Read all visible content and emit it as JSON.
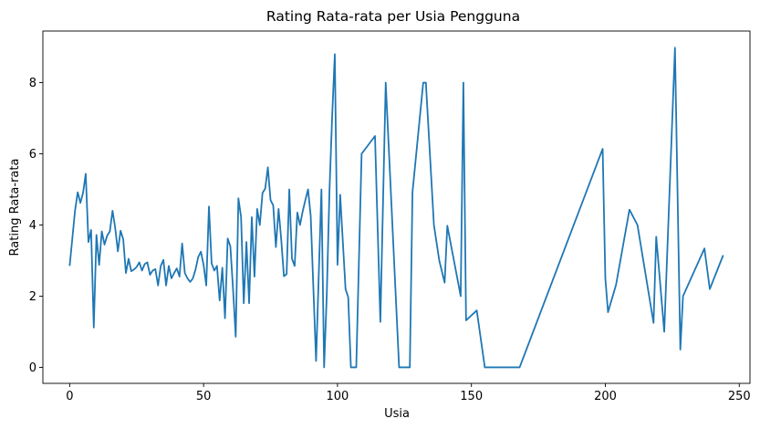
{
  "chart_data": {
    "type": "line",
    "title": "Rating Rata-rata per Usia Pengguna",
    "xlabel": "Usia",
    "ylabel": "Rating Rata-rata",
    "xlim": [
      -10,
      254
    ],
    "ylim": [
      -0.45,
      9.45
    ],
    "xticks": [
      0,
      50,
      100,
      150,
      200,
      250
    ],
    "yticks": [
      0,
      2,
      4,
      6,
      8
    ],
    "grid": false,
    "legend": "none",
    "series": [
      {
        "color": "#1f77b4",
        "points": [
          [
            0,
            2.85
          ],
          [
            2,
            4.4
          ],
          [
            3,
            4.92
          ],
          [
            4,
            4.62
          ],
          [
            5,
            4.9
          ],
          [
            6,
            5.44
          ],
          [
            7,
            3.52
          ],
          [
            8,
            3.86
          ],
          [
            9,
            1.12
          ],
          [
            10,
            3.72
          ],
          [
            11,
            2.88
          ],
          [
            12,
            3.82
          ],
          [
            13,
            3.45
          ],
          [
            14,
            3.7
          ],
          [
            15,
            3.82
          ],
          [
            16,
            4.4
          ],
          [
            17,
            3.92
          ],
          [
            18,
            3.26
          ],
          [
            19,
            3.84
          ],
          [
            20,
            3.6
          ],
          [
            21,
            2.65
          ],
          [
            22,
            3.05
          ],
          [
            23,
            2.7
          ],
          [
            24,
            2.75
          ],
          [
            25,
            2.82
          ],
          [
            26,
            2.95
          ],
          [
            27,
            2.72
          ],
          [
            28,
            2.9
          ],
          [
            29,
            2.95
          ],
          [
            30,
            2.6
          ],
          [
            31,
            2.72
          ],
          [
            32,
            2.76
          ],
          [
            33,
            2.3
          ],
          [
            34,
            2.85
          ],
          [
            35,
            3.02
          ],
          [
            36,
            2.3
          ],
          [
            37,
            2.85
          ],
          [
            38,
            2.5
          ],
          [
            39,
            2.65
          ],
          [
            40,
            2.78
          ],
          [
            41,
            2.55
          ],
          [
            42,
            3.48
          ],
          [
            43,
            2.65
          ],
          [
            44,
            2.5
          ],
          [
            45,
            2.4
          ],
          [
            46,
            2.5
          ],
          [
            47,
            2.75
          ],
          [
            48,
            3.1
          ],
          [
            49,
            3.25
          ],
          [
            50,
            2.88
          ],
          [
            51,
            2.3
          ],
          [
            52,
            4.52
          ],
          [
            53,
            2.92
          ],
          [
            54,
            2.72
          ],
          [
            55,
            2.85
          ],
          [
            56,
            1.88
          ],
          [
            57,
            2.8
          ],
          [
            58,
            1.38
          ],
          [
            59,
            3.62
          ],
          [
            60,
            3.4
          ],
          [
            61,
            2.2
          ],
          [
            62,
            0.86
          ],
          [
            63,
            4.75
          ],
          [
            64,
            4.22
          ],
          [
            65,
            1.8
          ],
          [
            66,
            3.52
          ],
          [
            67,
            1.8
          ],
          [
            68,
            4.22
          ],
          [
            69,
            2.55
          ],
          [
            70,
            4.45
          ],
          [
            71,
            4.0
          ],
          [
            72,
            4.9
          ],
          [
            73,
            5.02
          ],
          [
            74,
            5.62
          ],
          [
            75,
            4.7
          ],
          [
            76,
            4.55
          ],
          [
            77,
            3.38
          ],
          [
            78,
            4.45
          ],
          [
            79,
            3.58
          ],
          [
            80,
            2.56
          ],
          [
            81,
            2.62
          ],
          [
            82,
            5.0
          ],
          [
            83,
            3.05
          ],
          [
            84,
            2.85
          ],
          [
            85,
            4.35
          ],
          [
            86,
            4.0
          ],
          [
            87,
            4.38
          ],
          [
            88,
            4.7
          ],
          [
            89,
            5.0
          ],
          [
            90,
            4.25
          ],
          [
            92,
            0.18
          ],
          [
            94,
            5.0
          ],
          [
            95,
            0.0
          ],
          [
            96,
            2.05
          ],
          [
            97,
            4.95
          ],
          [
            98,
            7.05
          ],
          [
            99,
            8.8
          ],
          [
            100,
            2.88
          ],
          [
            101,
            4.85
          ],
          [
            103,
            2.2
          ],
          [
            104,
            1.97
          ],
          [
            105,
            0.0
          ],
          [
            107,
            0.0
          ],
          [
            109,
            6.0
          ],
          [
            114,
            6.5
          ],
          [
            116,
            1.28
          ],
          [
            118,
            8.0
          ],
          [
            123,
            0.0
          ],
          [
            127,
            0.0
          ],
          [
            128,
            4.92
          ],
          [
            132,
            8.0
          ],
          [
            133,
            8.0
          ],
          [
            136,
            4.0
          ],
          [
            138,
            3.0
          ],
          [
            140,
            2.38
          ],
          [
            141,
            3.98
          ],
          [
            146,
            2.0
          ],
          [
            147,
            8.0
          ],
          [
            148,
            1.32
          ],
          [
            152,
            1.6
          ],
          [
            155,
            0.0
          ],
          [
            168,
            0.0
          ],
          [
            199,
            6.14
          ],
          [
            200,
            2.5
          ],
          [
            201,
            1.55
          ],
          [
            204,
            2.32
          ],
          [
            209,
            4.43
          ],
          [
            212,
            4.0
          ],
          [
            218,
            1.25
          ],
          [
            219,
            3.67
          ],
          [
            222,
            1.0
          ],
          [
            226,
            8.98
          ],
          [
            228,
            0.5
          ],
          [
            229,
            2.0
          ],
          [
            237,
            3.34
          ],
          [
            239,
            2.2
          ],
          [
            244,
            3.15
          ]
        ]
      }
    ]
  }
}
